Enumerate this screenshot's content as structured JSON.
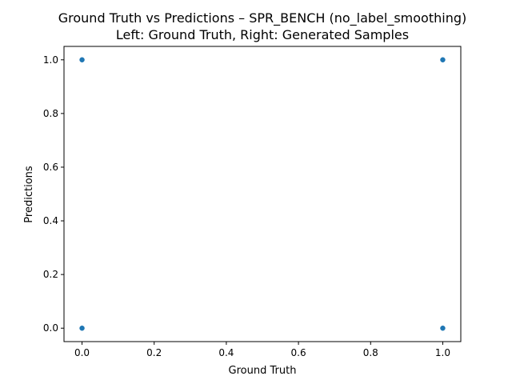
{
  "chart_data": {
    "type": "scatter",
    "title_line1": "Ground Truth vs Predictions – SPR_BENCH (no_label_smoothing)",
    "title_line2": "Left: Ground Truth, Right: Generated Samples",
    "xlabel": "Ground Truth",
    "ylabel": "Predictions",
    "xlim": [
      -0.05,
      1.05
    ],
    "ylim": [
      -0.05,
      1.05
    ],
    "xticks": [
      "0.0",
      "0.2",
      "0.4",
      "0.6",
      "0.8",
      "1.0"
    ],
    "yticks": [
      "0.0",
      "0.2",
      "0.4",
      "0.6",
      "0.8",
      "1.0"
    ],
    "grid": false,
    "series": [
      {
        "points": [
          {
            "x": 0,
            "y": 0
          },
          {
            "x": 0,
            "y": 1
          },
          {
            "x": 1,
            "y": 0
          },
          {
            "x": 1,
            "y": 1
          }
        ],
        "color": "#1f77b4"
      }
    ]
  }
}
